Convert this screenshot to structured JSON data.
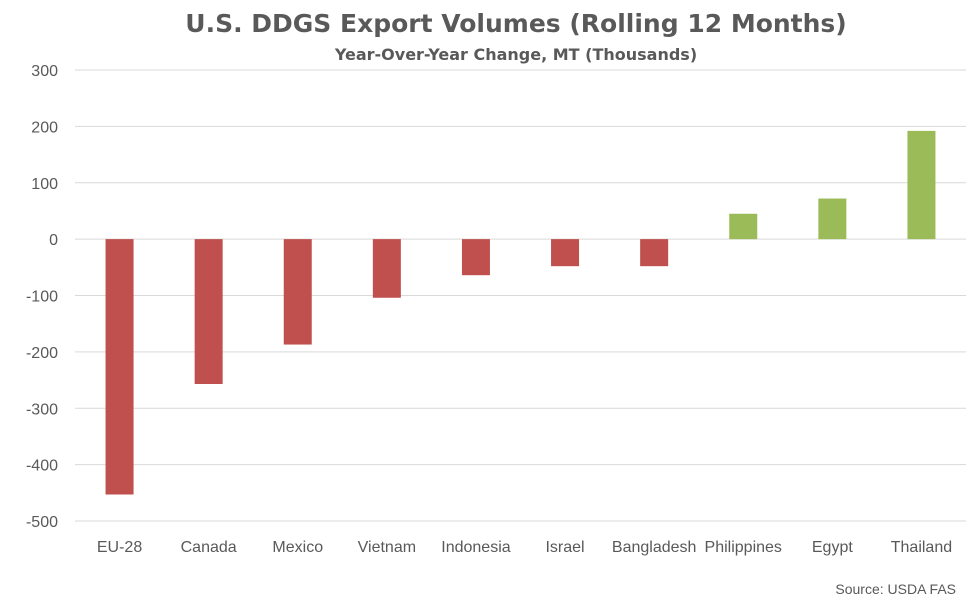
{
  "chart_data": {
    "type": "bar",
    "title": "U.S. DDGS Export Volumes (Rolling 12 Months)",
    "subtitle": "Year-Over-Year Change, MT (Thousands)",
    "xlabel": "",
    "ylabel": "",
    "categories": [
      "EU-28",
      "Canada",
      "Mexico",
      "Vietnam",
      "Indonesia",
      "Israel",
      "Bangladesh",
      "Philippines",
      "Egypt",
      "Thailand"
    ],
    "values": [
      -453,
      -257,
      -187,
      -104,
      -64,
      -48,
      -48,
      45,
      72,
      192
    ],
    "ylim": [
      -500,
      300
    ],
    "yticks": [
      300,
      200,
      100,
      0,
      -100,
      -200,
      -300,
      -400,
      -500
    ],
    "grid": true,
    "legend": "none",
    "colors": {
      "negative": "#c0504d",
      "positive": "#9bbb59",
      "grid": "#d9d9d9",
      "text": "#595959"
    },
    "source": "Source: USDA FAS"
  }
}
